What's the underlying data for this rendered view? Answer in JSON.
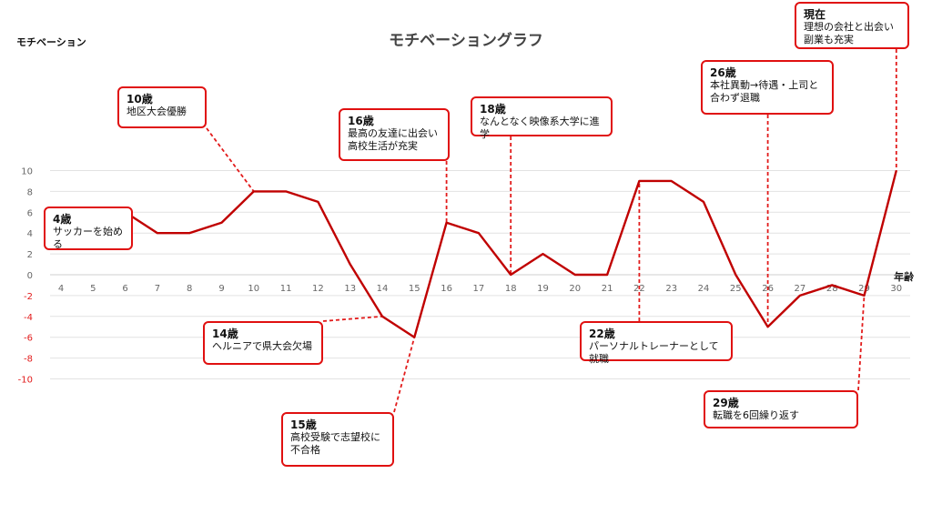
{
  "chart_data": {
    "type": "line",
    "title": "モチベーショングラフ",
    "ylabel": "モチベーション",
    "xlabel": "年齢",
    "ylim": [
      -10,
      10
    ],
    "yticks": [
      10,
      8,
      6,
      4,
      2,
      0,
      -2,
      -4,
      -6,
      -8,
      -10
    ],
    "x": [
      4,
      5,
      6,
      7,
      8,
      9,
      10,
      11,
      12,
      13,
      14,
      15,
      16,
      17,
      18,
      19,
      20,
      21,
      22,
      23,
      24,
      25,
      26,
      27,
      28,
      29,
      30
    ],
    "values": [
      6,
      5,
      6,
      4,
      4,
      5,
      8,
      8,
      7,
      1,
      -4,
      -6,
      5,
      4,
      0,
      2,
      0,
      0,
      9,
      9,
      7,
      0,
      -5,
      -2,
      -1,
      -2,
      10
    ],
    "grid": true,
    "annotations": [
      {
        "age": "4歳",
        "text": "サッカーを始める",
        "x": 4,
        "y": 6
      },
      {
        "age": "10歳",
        "text": "地区大会優勝",
        "x": 10,
        "y": 8
      },
      {
        "age": "14歳",
        "text": "ヘルニアで県大会欠場",
        "x": 14,
        "y": -4
      },
      {
        "age": "15歳",
        "text": "高校受験で志望校に\n不合格",
        "x": 15,
        "y": -6
      },
      {
        "age": "16歳",
        "text": "最高の友達に出会い\n高校生活が充実",
        "x": 16,
        "y": 5
      },
      {
        "age": "18歳",
        "text": "なんとなく映像系大学に進学",
        "x": 18,
        "y": 0
      },
      {
        "age": "22歳",
        "text": "パーソナルトレーナーとして就職",
        "x": 22,
        "y": 9
      },
      {
        "age": "26歳",
        "text": "本社異動→待遇・上司と\n合わず退職",
        "x": 26,
        "y": -5
      },
      {
        "age": "29歳",
        "text": "転職を6回繰り返す",
        "x": 29,
        "y": -2
      },
      {
        "age": "現在",
        "text": "理想の会社と出会い\n副業も充実",
        "x": 30,
        "y": 10
      }
    ],
    "colors": {
      "line": "#c00000",
      "annotation_border": "#e01010",
      "negative_tick": "#e21b1b"
    }
  }
}
